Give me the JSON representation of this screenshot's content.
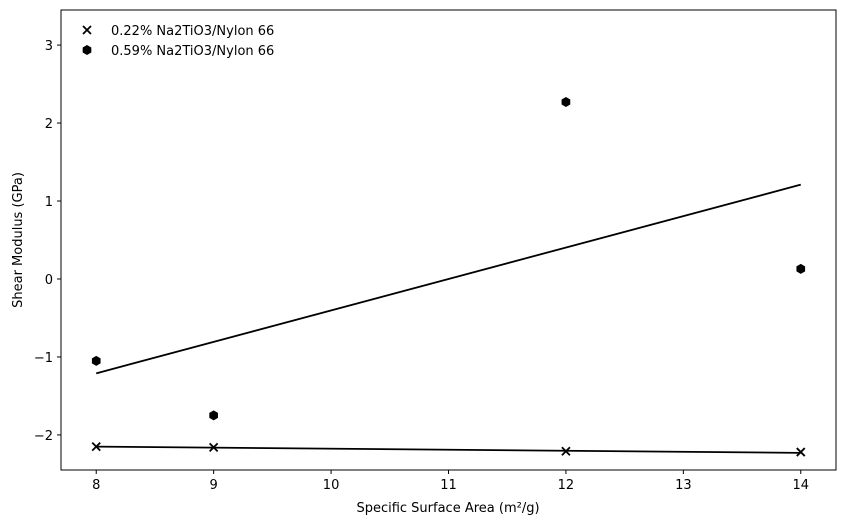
{
  "chart_data": {
    "type": "scatter",
    "xlabel": "Specific Surface Area (m²/g)",
    "ylabel": "Shear Modulus (GPa)",
    "xlim": [
      7.7,
      14.3
    ],
    "ylim": [
      -2.45,
      3.45
    ],
    "xticks": [
      8,
      9,
      10,
      11,
      12,
      13,
      14
    ],
    "yticks": [
      -2,
      -1,
      0,
      1,
      2,
      3
    ],
    "grid": false,
    "legend_position": "top-left",
    "series": [
      {
        "name": "0.22% Na2TiO3/Nylon 66",
        "marker": "x",
        "color": "#000000",
        "x": [
          8,
          9,
          12,
          14
        ],
        "y": [
          -2.15,
          -2.16,
          -2.21,
          -2.22
        ],
        "fit_line": {
          "x": [
            8,
            14
          ],
          "y": [
            -2.15,
            -2.23
          ]
        }
      },
      {
        "name": "0.59% Na2TiO3/Nylon 66",
        "marker": "hexagon",
        "color": "#000000",
        "x": [
          8,
          9,
          12,
          14
        ],
        "y": [
          -1.05,
          -1.75,
          2.27,
          0.13
        ],
        "fit_line": {
          "x": [
            8,
            14
          ],
          "y": [
            -1.21,
            1.21
          ]
        }
      }
    ]
  }
}
